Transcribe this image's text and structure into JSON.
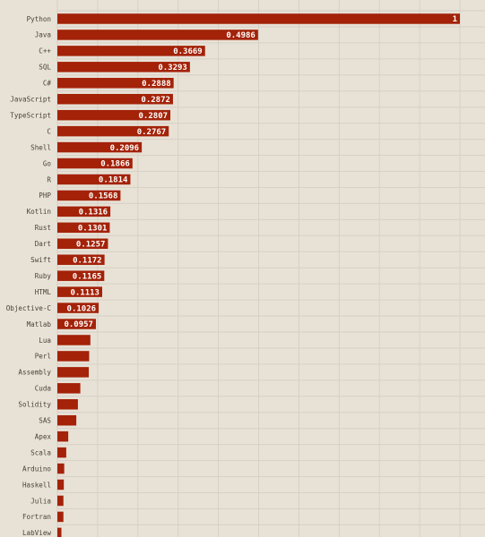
{
  "colors": {
    "background": "#e8e1d6",
    "bar": "#a32208",
    "grid": "#d6d0c5",
    "label": "#4a4438",
    "value_label": "#ffffff"
  },
  "chart_data": {
    "type": "bar",
    "orientation": "horizontal",
    "title": "",
    "xlabel": "",
    "ylabel": "",
    "xlim": [
      0,
      1
    ],
    "grid": true,
    "legend": "none",
    "categories": [
      "Python",
      "Java",
      "C++",
      "SQL",
      "C#",
      "JavaScript",
      "TypeScript",
      "C",
      "Shell",
      "Go",
      "R",
      "PHP",
      "Kotlin",
      "Rust",
      "Dart",
      "Swift",
      "Ruby",
      "HTML",
      "Objective-C",
      "Matlab",
      "Lua",
      "Perl",
      "Assembly",
      "Cuda",
      "Solidity",
      "SAS",
      "Apex",
      "Scala",
      "Arduino",
      "Haskell",
      "Julia",
      "Fortran",
      "LabView"
    ],
    "values": [
      1,
      0.4986,
      0.3669,
      0.3293,
      0.2888,
      0.2872,
      0.2807,
      0.2767,
      0.2096,
      0.1866,
      0.1814,
      0.1568,
      0.1316,
      0.1301,
      0.1257,
      0.1172,
      0.1165,
      0.1113,
      0.1026,
      0.0957,
      0.082,
      0.079,
      0.078,
      0.057,
      0.051,
      0.047,
      0.027,
      0.022,
      0.017,
      0.016,
      0.015,
      0.015,
      0.01
    ],
    "value_labels": [
      "1",
      "0.4986",
      "0.3669",
      "0.3293",
      "0.2888",
      "0.2872",
      "0.2807",
      "0.2767",
      "0.2096",
      "0.1866",
      "0.1814",
      "0.1568",
      "0.1316",
      "0.1301",
      "0.1257",
      "0.1172",
      "0.1165",
      "0.1113",
      "0.1026",
      "0.0957",
      "",
      "",
      "",
      "",
      "",
      "",
      "",
      "",
      "",
      "",
      "",
      "",
      ""
    ]
  }
}
